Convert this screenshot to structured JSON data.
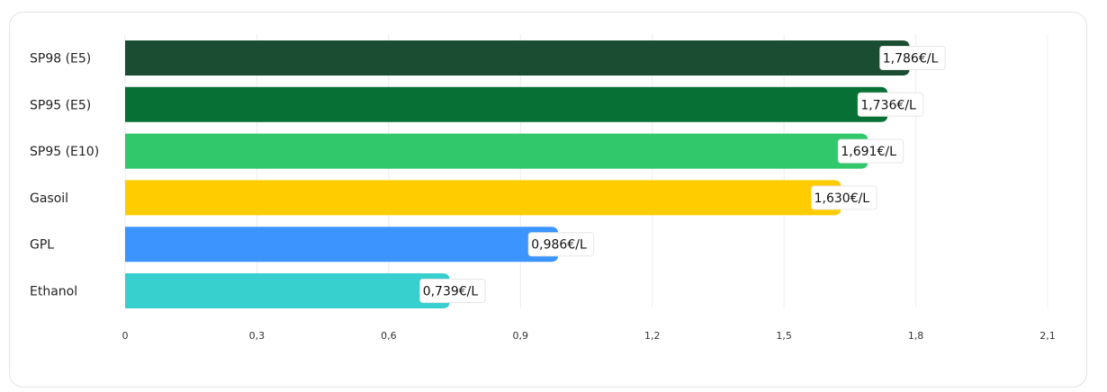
{
  "chart_data": {
    "type": "bar",
    "orientation": "horizontal",
    "categories": [
      "SP98 (E5)",
      "SP95 (E5)",
      "SP95 (E10)",
      "Gasoil",
      "GPL",
      "Ethanol"
    ],
    "values": [
      1.786,
      1.736,
      1.691,
      1.63,
      0.986,
      0.739
    ],
    "value_labels": [
      "1,786€/L",
      "1,736€/L",
      "1,691€/L",
      "1,630€/L",
      "0,986€/L",
      "0,739€/L"
    ],
    "colors": [
      "#1a4d31",
      "#067035",
      "#31c76b",
      "#ffcc00",
      "#3b94ff",
      "#38cfcf"
    ],
    "xlim": [
      0,
      2.1
    ],
    "x_ticks": [
      0,
      0.3,
      0.6,
      0.9,
      1.2,
      1.5,
      1.8,
      2.1
    ],
    "x_tick_labels": [
      "0",
      "0,3",
      "0,6",
      "0,9",
      "1,2",
      "1,5",
      "1,8",
      "2,1"
    ],
    "grid": true,
    "title": "",
    "xlabel": "",
    "ylabel": ""
  }
}
